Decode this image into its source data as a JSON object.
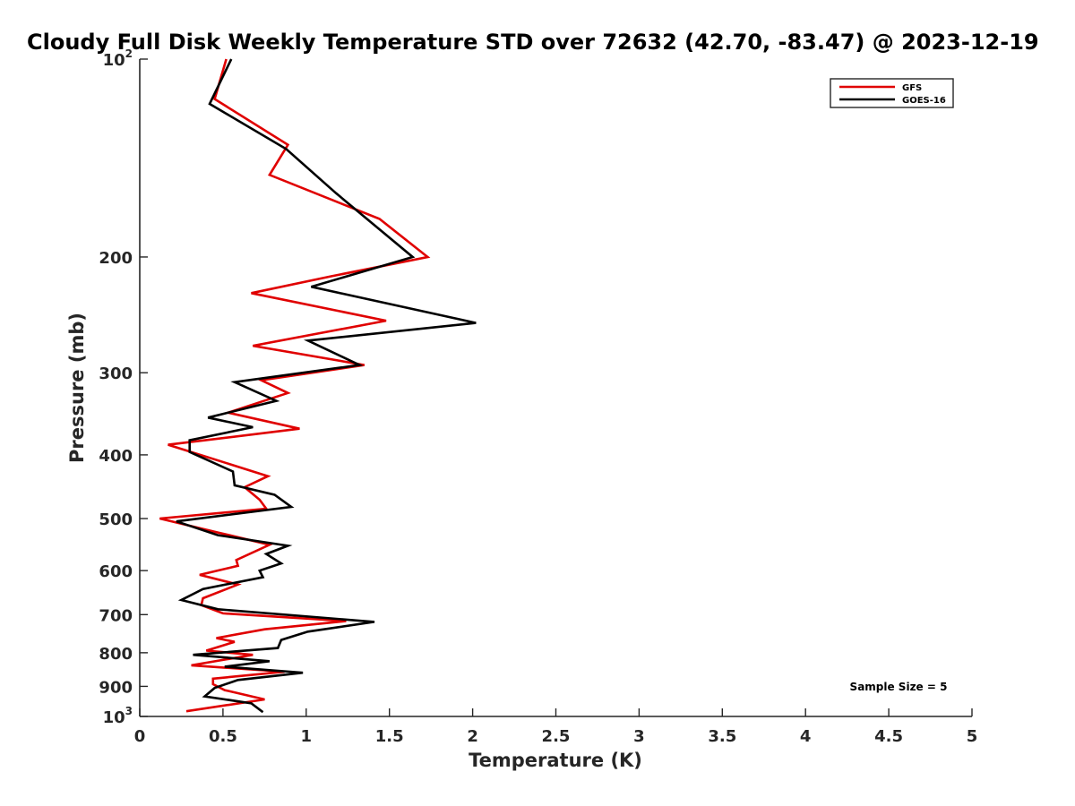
{
  "chart_data": {
    "type": "line",
    "title": "Cloudy Full Disk Weekly Temperature STD over 72632 (42.70, -83.47) @ 2023-12-19",
    "xlabel": "Temperature (K)",
    "ylabel": "Pressure (mb)",
    "xlim": [
      0,
      5
    ],
    "ylim": [
      100,
      1000
    ],
    "y_scale": "log",
    "y_reversed": true,
    "x_ticks": [
      0,
      0.5,
      1,
      1.5,
      2,
      2.5,
      3,
      3.5,
      4,
      4.5,
      5
    ],
    "x_tick_labels": [
      "0",
      "0.5",
      "1",
      "1.5",
      "2",
      "2.5",
      "3",
      "3.5",
      "4",
      "4.5",
      "5"
    ],
    "y_ticks": [
      100,
      200,
      300,
      400,
      500,
      600,
      700,
      800,
      900,
      1000
    ],
    "y_tick_labels": [
      {
        "base": "10",
        "sup": "2"
      },
      {
        "base": "200",
        "sup": ""
      },
      {
        "base": "300",
        "sup": ""
      },
      {
        "base": "400",
        "sup": ""
      },
      {
        "base": "500",
        "sup": ""
      },
      {
        "base": "600",
        "sup": ""
      },
      {
        "base": "700",
        "sup": ""
      },
      {
        "base": "800",
        "sup": ""
      },
      {
        "base": "900",
        "sup": ""
      },
      {
        "base": "10",
        "sup": "3"
      }
    ],
    "grid": false,
    "legend_position": "top-right",
    "annotation": "Sample Size = 5",
    "series": [
      {
        "name": "GFS",
        "color": "#e00000",
        "points": [
          [
            0.52,
            100
          ],
          [
            0.45,
            115
          ],
          [
            0.89,
            135
          ],
          [
            0.78,
            150
          ],
          [
            1.44,
            175
          ],
          [
            1.73,
            200
          ],
          [
            1.15,
            214
          ],
          [
            0.67,
            227
          ],
          [
            1.48,
            250
          ],
          [
            0.68,
            273
          ],
          [
            1.35,
            292
          ],
          [
            0.73,
            308
          ],
          [
            0.89,
            322
          ],
          [
            0.53,
            345
          ],
          [
            0.96,
            365
          ],
          [
            0.17,
            386
          ],
          [
            0.77,
            431
          ],
          [
            0.63,
            448
          ],
          [
            0.72,
            468
          ],
          [
            0.76,
            483
          ],
          [
            0.12,
            500
          ],
          [
            0.47,
            525
          ],
          [
            0.78,
            548
          ],
          [
            0.58,
            578
          ],
          [
            0.59,
            590
          ],
          [
            0.36,
            609
          ],
          [
            0.59,
            630
          ],
          [
            0.38,
            661
          ],
          [
            0.37,
            677
          ],
          [
            0.5,
            697
          ],
          [
            1.24,
            716
          ],
          [
            0.75,
            737
          ],
          [
            0.46,
            760
          ],
          [
            0.57,
            770
          ],
          [
            0.4,
            794
          ],
          [
            0.68,
            806
          ],
          [
            0.31,
            836
          ],
          [
            0.87,
            855
          ],
          [
            0.44,
            876
          ],
          [
            0.44,
            893
          ],
          [
            0.51,
            912
          ],
          [
            0.75,
            942
          ],
          [
            0.28,
            982
          ]
        ]
      },
      {
        "name": "GOES-16",
        "color": "#000000",
        "points": [
          [
            0.55,
            100
          ],
          [
            0.42,
            117
          ],
          [
            0.88,
            137
          ],
          [
            1.18,
            160
          ],
          [
            1.64,
            200
          ],
          [
            1.03,
            222
          ],
          [
            2.02,
            252
          ],
          [
            1.01,
            268
          ],
          [
            1.32,
            292
          ],
          [
            0.57,
            310
          ],
          [
            0.82,
            331
          ],
          [
            0.41,
            351
          ],
          [
            0.68,
            363
          ],
          [
            0.3,
            380
          ],
          [
            0.3,
            396
          ],
          [
            0.56,
            424
          ],
          [
            0.57,
            445
          ],
          [
            0.81,
            460
          ],
          [
            0.91,
            480
          ],
          [
            0.22,
            505
          ],
          [
            0.47,
            530
          ],
          [
            0.89,
            550
          ],
          [
            0.76,
            566
          ],
          [
            0.85,
            585
          ],
          [
            0.72,
            600
          ],
          [
            0.74,
            614
          ],
          [
            0.38,
            640
          ],
          [
            0.25,
            665
          ],
          [
            0.47,
            687
          ],
          [
            1.41,
            718
          ],
          [
            1.01,
            743
          ],
          [
            0.85,
            765
          ],
          [
            0.83,
            787
          ],
          [
            0.32,
            806
          ],
          [
            0.78,
            824
          ],
          [
            0.51,
            840
          ],
          [
            0.98,
            858
          ],
          [
            0.59,
            880
          ],
          [
            0.45,
            905
          ],
          [
            0.39,
            932
          ],
          [
            0.67,
            955
          ],
          [
            0.74,
            985
          ]
        ]
      }
    ]
  }
}
